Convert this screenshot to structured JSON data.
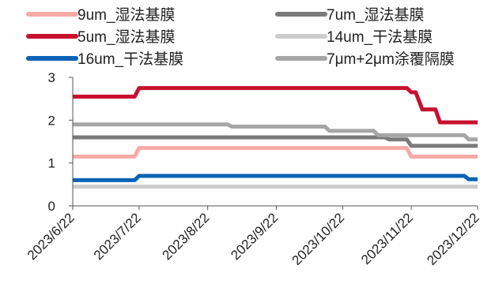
{
  "chart_data": {
    "type": "line",
    "title": "",
    "xlabel": "",
    "ylabel": "",
    "ylim": [
      0,
      3
    ],
    "yticks": [
      0,
      1,
      2,
      3
    ],
    "xlim": [
      "2023-06-22",
      "2023-12-22"
    ],
    "xticks": [
      "2023/6/22",
      "2023/7/22",
      "2023/8/22",
      "2023/9/22",
      "2023/10/22",
      "2023/11/22",
      "2023/12/22"
    ],
    "grid": false,
    "legend_position": "top",
    "series": [
      {
        "name": "9um_湿法基膜",
        "color": "#f6aaa6",
        "points": [
          [
            "2023-06-22",
            1.15
          ],
          [
            "2023-07-20",
            1.15
          ],
          [
            "2023-07-22",
            1.35
          ],
          [
            "2023-11-20",
            1.35
          ],
          [
            "2023-11-22",
            1.15
          ],
          [
            "2023-12-22",
            1.15
          ]
        ]
      },
      {
        "name": "7um_湿法基膜",
        "color": "#7a7a7a",
        "points": [
          [
            "2023-06-22",
            1.6
          ],
          [
            "2023-11-10",
            1.6
          ],
          [
            "2023-11-12",
            1.55
          ],
          [
            "2023-11-20",
            1.55
          ],
          [
            "2023-11-22",
            1.4
          ],
          [
            "2023-12-22",
            1.4
          ]
        ]
      },
      {
        "name": "5um_湿法基膜",
        "color": "#c8102e",
        "points": [
          [
            "2023-06-22",
            2.55
          ],
          [
            "2023-07-20",
            2.55
          ],
          [
            "2023-07-22",
            2.75
          ],
          [
            "2023-11-20",
            2.75
          ],
          [
            "2023-11-22",
            2.65
          ],
          [
            "2023-11-24",
            2.65
          ],
          [
            "2023-11-27",
            2.25
          ],
          [
            "2023-12-03",
            2.25
          ],
          [
            "2023-12-05",
            1.95
          ],
          [
            "2023-12-22",
            1.95
          ]
        ]
      },
      {
        "name": "14um_干法基膜",
        "color": "#cccccc",
        "points": [
          [
            "2023-06-22",
            0.45
          ],
          [
            "2023-12-22",
            0.45
          ]
        ]
      },
      {
        "name": "16um_干法基膜",
        "color": "#0a63b6",
        "points": [
          [
            "2023-06-22",
            0.6
          ],
          [
            "2023-07-20",
            0.6
          ],
          [
            "2023-07-22",
            0.7
          ],
          [
            "2023-12-16",
            0.7
          ],
          [
            "2023-12-18",
            0.62
          ],
          [
            "2023-12-22",
            0.62
          ]
        ]
      },
      {
        "name": "7μm+2μm涂覆隔膜",
        "color": "#a6a6a6",
        "points": [
          [
            "2023-06-22",
            1.9
          ],
          [
            "2023-08-31",
            1.9
          ],
          [
            "2023-09-02",
            1.85
          ],
          [
            "2023-10-14",
            1.85
          ],
          [
            "2023-10-16",
            1.75
          ],
          [
            "2023-11-05",
            1.75
          ],
          [
            "2023-11-07",
            1.65
          ],
          [
            "2023-12-16",
            1.65
          ],
          [
            "2023-12-18",
            1.55
          ],
          [
            "2023-12-22",
            1.55
          ]
        ]
      }
    ]
  }
}
